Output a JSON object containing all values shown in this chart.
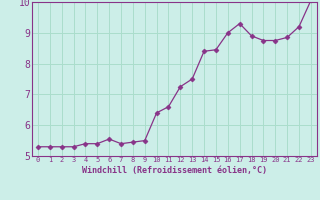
{
  "x": [
    0,
    1,
    2,
    3,
    4,
    5,
    6,
    7,
    8,
    9,
    10,
    11,
    12,
    13,
    14,
    15,
    16,
    17,
    18,
    19,
    20,
    21,
    22,
    23
  ],
  "y": [
    5.3,
    5.3,
    5.3,
    5.3,
    5.4,
    5.4,
    5.55,
    5.4,
    5.45,
    5.5,
    6.4,
    6.6,
    7.25,
    7.5,
    8.4,
    8.45,
    9.0,
    9.3,
    8.9,
    8.75,
    8.75,
    8.85,
    9.2,
    10.05
  ],
  "line_color": "#883388",
  "marker": "D",
  "marker_size": 2.5,
  "bg_color": "#cceee8",
  "grid_color": "#aaddcc",
  "xlabel": "Windchill (Refroidissement éolien,°C)",
  "xlabel_color": "#883388",
  "tick_color": "#883388",
  "ylim": [
    5,
    10
  ],
  "xlim": [
    -0.5,
    23.5
  ],
  "yticks": [
    5,
    6,
    7,
    8,
    9,
    10
  ],
  "xticks": [
    0,
    1,
    2,
    3,
    4,
    5,
    6,
    7,
    8,
    9,
    10,
    11,
    12,
    13,
    14,
    15,
    16,
    17,
    18,
    19,
    20,
    21,
    22,
    23
  ]
}
